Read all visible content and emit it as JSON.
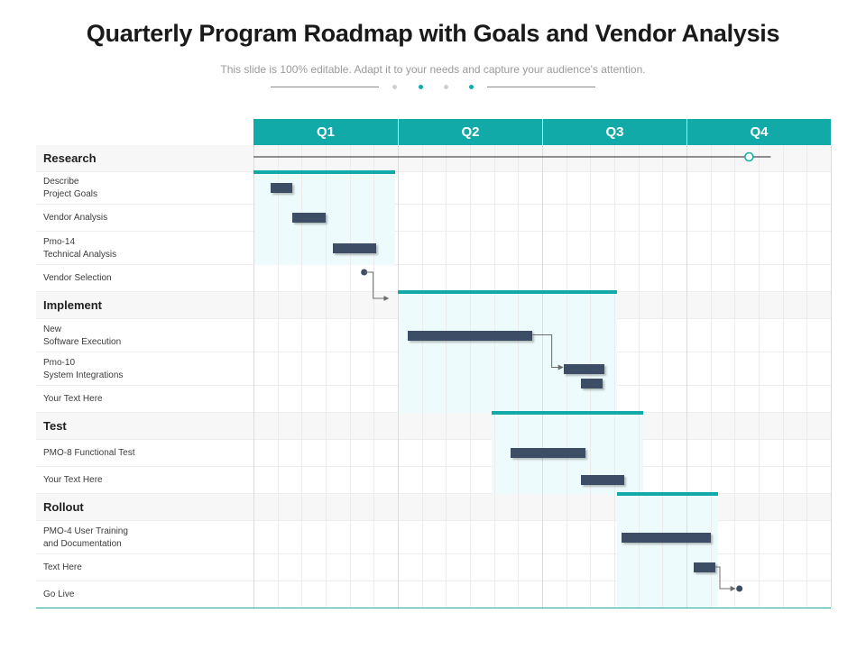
{
  "header": {
    "title": "Quarterly Program Roadmap with Goals and Vendor Analysis",
    "subtitle": "This slide is 100% editable. Adapt it to your needs and capture your audience's attention."
  },
  "colors": {
    "accent": "#12aaa8",
    "task_bar": "#3d4d66",
    "phase_fill": "#edfbfc",
    "dot_gray": "#cfcfcf",
    "dot_teal": "#12aaa8"
  },
  "timeline": {
    "quarters": [
      "Q1",
      "Q2",
      "Q3",
      "Q4"
    ],
    "weeks_per_quarter": 6,
    "research_span": {
      "start_week": 0,
      "end_week": 21.5,
      "marker_week": 20.6
    }
  },
  "rows": [
    {
      "label": "Research",
      "section": true
    },
    {
      "label": "Describe\nProject Goals",
      "section": false
    },
    {
      "label": "Vendor Analysis",
      "section": false
    },
    {
      "label": "Pmo-14\nTechnical Analysis",
      "section": false
    },
    {
      "label": "Vendor Selection",
      "section": false
    },
    {
      "label": "Implement",
      "section": true
    },
    {
      "label": "New\nSoftware Execution",
      "section": false
    },
    {
      "label": "Pmo-10\nSystem Integrations",
      "section": false
    },
    {
      "label": "Your Text Here",
      "section": false
    },
    {
      "label": "Test",
      "section": true
    },
    {
      "label": "PMO-8 Functional Test",
      "section": false
    },
    {
      "label": "Your Text Here",
      "section": false
    },
    {
      "label": "Rollout",
      "section": true
    },
    {
      "label": "PMO-4 User Training\nand Documentation",
      "section": false
    },
    {
      "label": "Text Here",
      "section": false
    },
    {
      "label": "Go Live",
      "section": false
    }
  ],
  "phases": [
    {
      "name": "Research",
      "start_week": 0,
      "end_week": 5.9,
      "first_row": 1,
      "last_row": 3
    },
    {
      "name": "Implement",
      "start_week": 6,
      "end_week": 15.1,
      "first_row": 5,
      "last_row": 8
    },
    {
      "name": "Test",
      "start_week": 9.9,
      "end_week": 16.2,
      "first_row": 9,
      "last_row": 11
    },
    {
      "name": "Rollout",
      "start_week": 15.1,
      "end_week": 19.3,
      "first_row": 12,
      "last_row": 15
    }
  ],
  "tasks": [
    {
      "name": "Describe Project Goals",
      "row": 1,
      "start_week": 0.7,
      "end_week": 1.6
    },
    {
      "name": "Vendor Analysis",
      "row": 2,
      "start_week": 1.6,
      "end_week": 3.0
    },
    {
      "name": "Pmo-14 Technical Analysis",
      "row": 3,
      "start_week": 3.3,
      "end_week": 5.1
    },
    {
      "name": "New Software Execution",
      "row": 6,
      "start_week": 6.4,
      "end_week": 11.6
    },
    {
      "name": "Pmo-10 System Integrations",
      "row": 7,
      "start_week": 12.9,
      "end_week": 14.6
    },
    {
      "name": "Pmo-10 System Integrations (part 2)",
      "row": 7,
      "start_week": 13.6,
      "end_week": 14.5,
      "offset": 0.9
    },
    {
      "name": "PMO-8 Functional Test",
      "row": 10,
      "start_week": 10.7,
      "end_week": 13.8
    },
    {
      "name": "Your Text Here",
      "row": 11,
      "start_week": 13.6,
      "end_week": 15.4
    },
    {
      "name": "PMO-4 User Training and Documentation",
      "row": 13,
      "start_week": 15.3,
      "end_week": 19.0
    },
    {
      "name": "Text Here",
      "row": 14,
      "start_week": 18.3,
      "end_week": 19.2
    }
  ],
  "milestones": [
    {
      "name": "Vendor Selection",
      "row": 4,
      "week": 4.6
    },
    {
      "name": "Go Live",
      "row": 15,
      "week": 20.2
    }
  ]
}
